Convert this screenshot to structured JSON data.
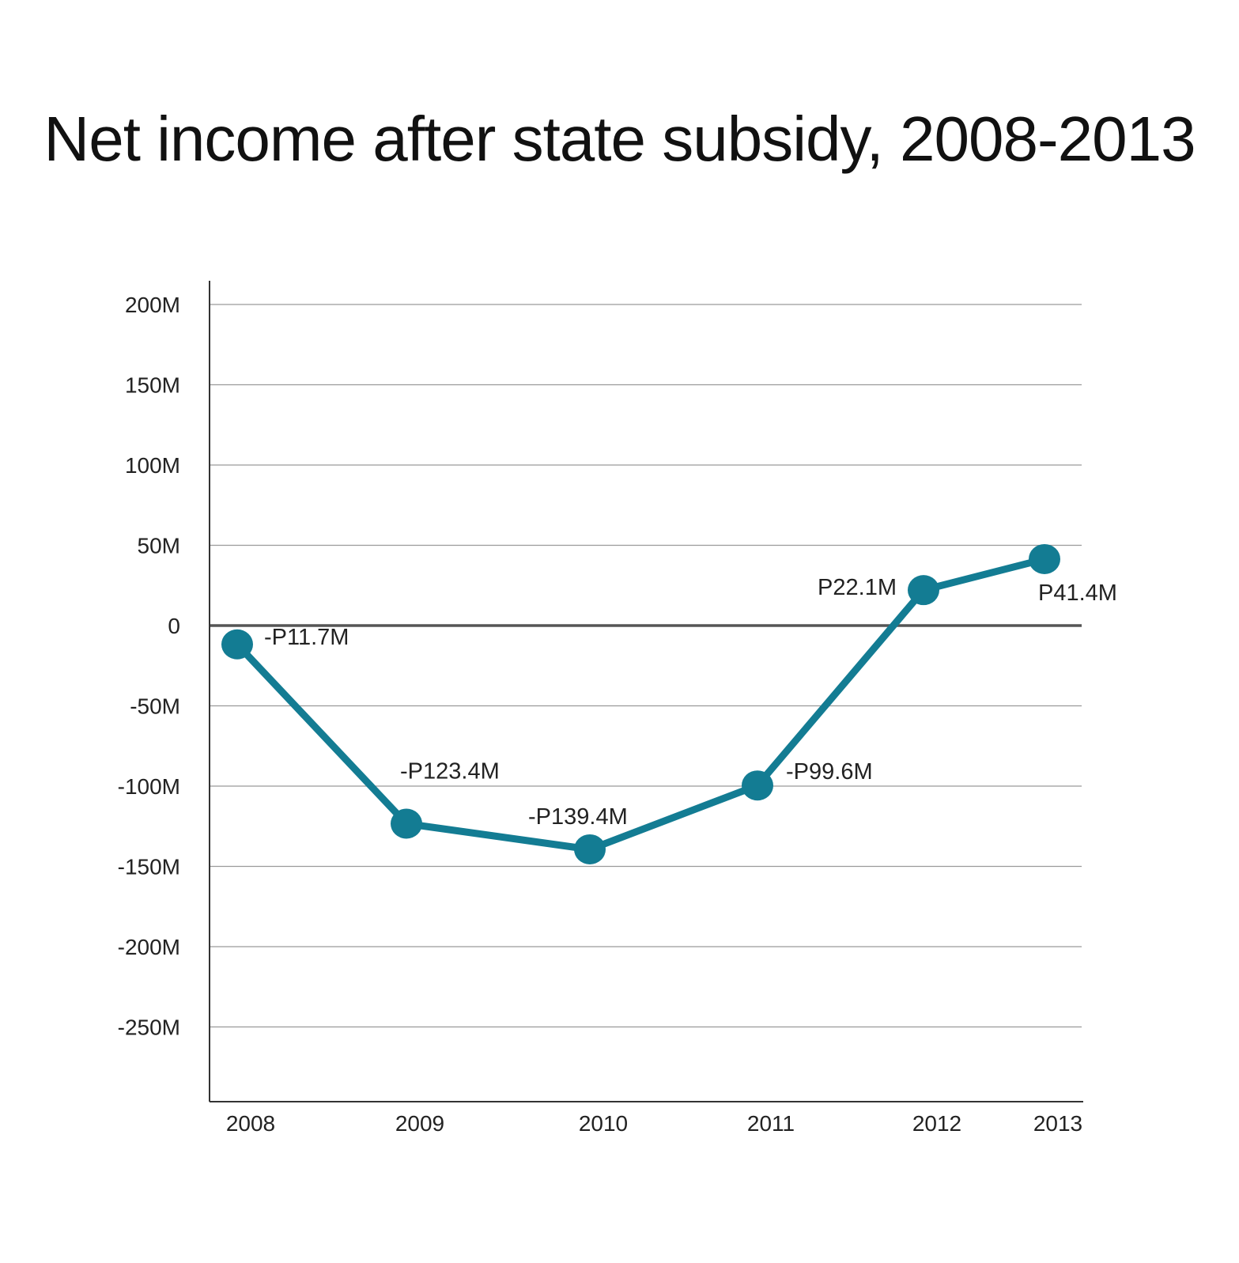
{
  "chart_data": {
    "type": "line",
    "title": "Net income after state subsidy, 2008-2013",
    "xlabel": "",
    "ylabel": "",
    "categories": [
      "2008",
      "2009",
      "2010",
      "2011",
      "2012",
      "2013"
    ],
    "series": [
      {
        "values": [
          -11.7,
          -123.4,
          -139.4,
          -99.6,
          22.1,
          41.4
        ],
        "data_labels": [
          "-P11.7M",
          "-P123.4M",
          "-P139.4M",
          "-P99.6M",
          "P22.1M",
          "P41.4M"
        ],
        "color": "#137c93"
      }
    ],
    "y_ticks": [
      {
        "value": 200,
        "label": "200M"
      },
      {
        "value": 150,
        "label": "150M"
      },
      {
        "value": 100,
        "label": "100M"
      },
      {
        "value": 50,
        "label": "50M"
      },
      {
        "value": 0,
        "label": "0"
      },
      {
        "value": -50,
        "label": "-50M"
      },
      {
        "value": -100,
        "label": "-100M"
      },
      {
        "value": -150,
        "label": "-150M"
      },
      {
        "value": -200,
        "label": "-200M"
      },
      {
        "value": -250,
        "label": "-250M"
      }
    ],
    "ylim": [
      -290,
      215
    ],
    "grid": true,
    "legend": "none",
    "colors": {
      "line": "#137c93",
      "grid": "#9a9a9a",
      "zero_line": "#555555",
      "axis": "#333333"
    }
  }
}
